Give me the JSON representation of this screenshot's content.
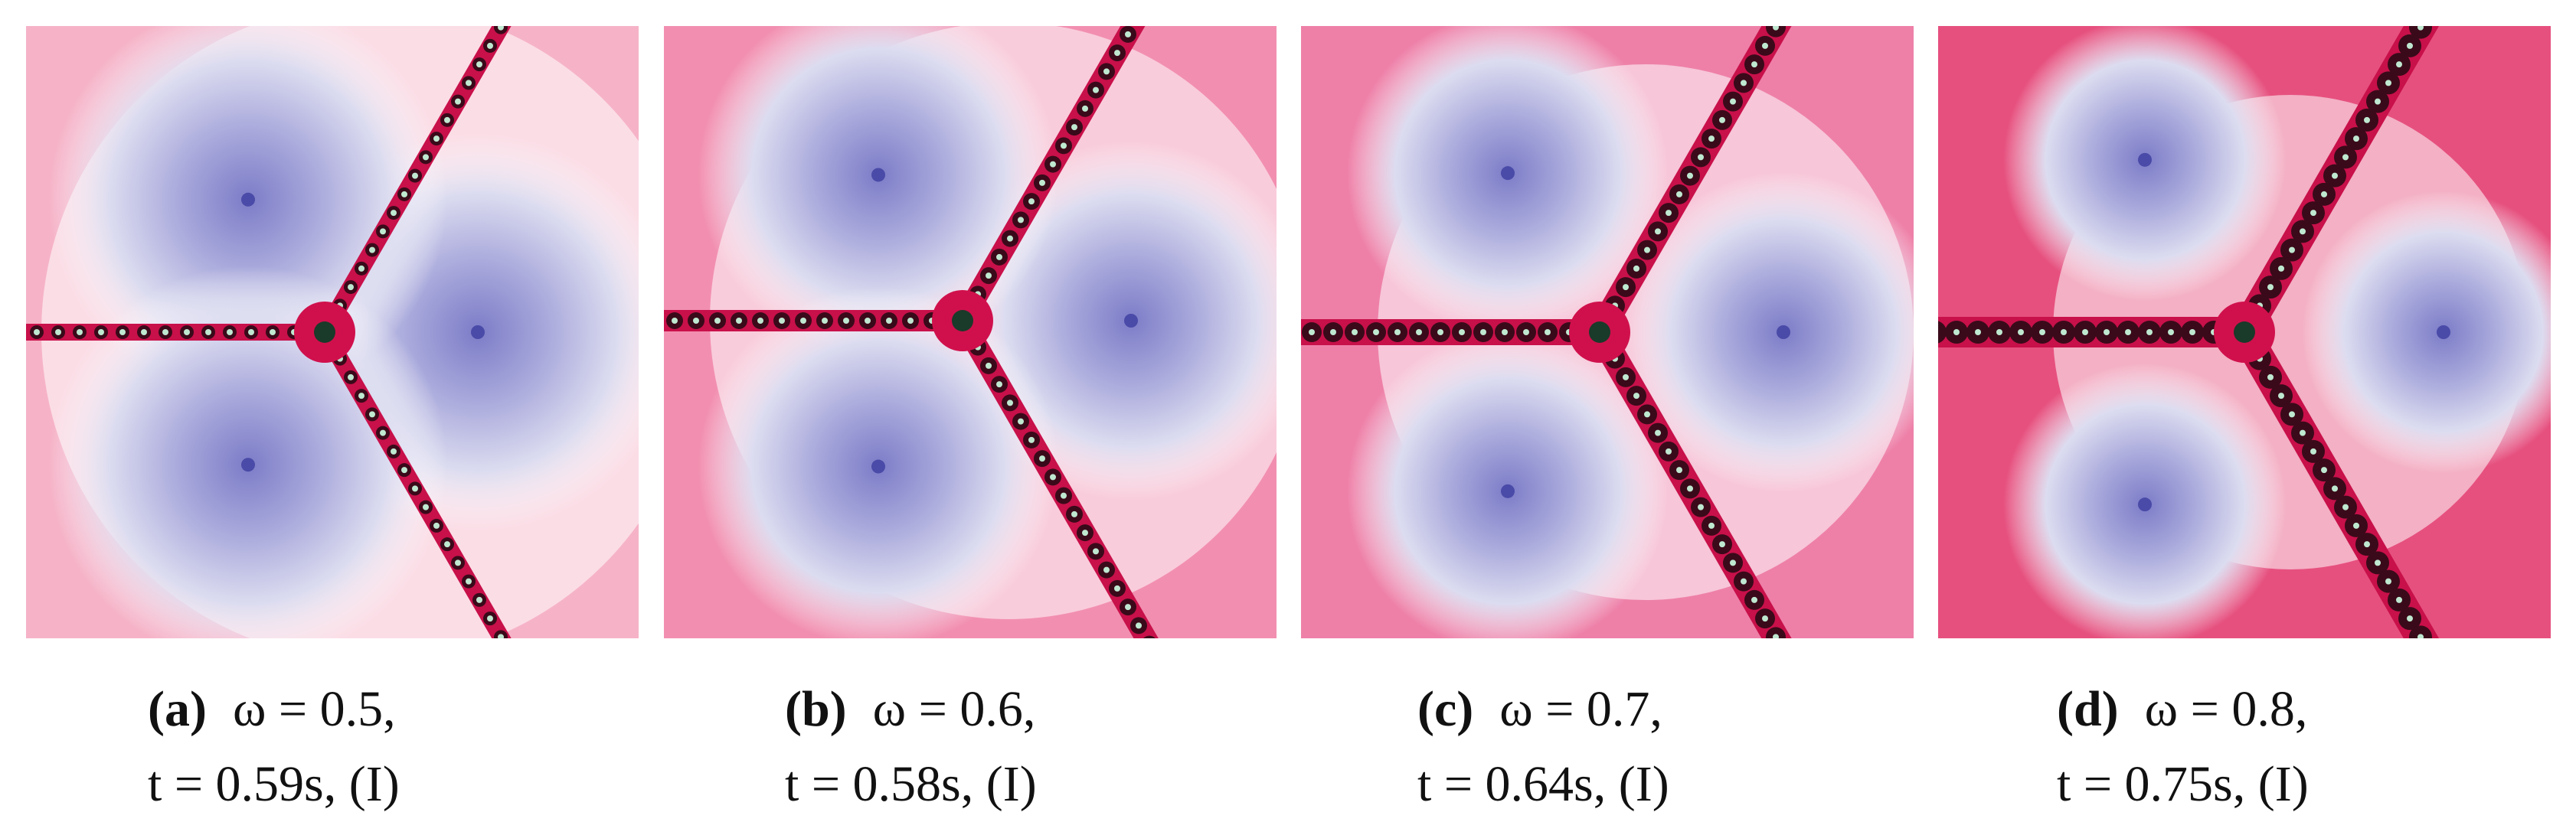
{
  "panels": [
    {
      "label": "(a)",
      "line1": "ω = 0.5,",
      "line2": "t = 0.59s, (I)"
    },
    {
      "label": "(b)",
      "line1": "ω = 0.6,",
      "line2": "t = 0.58s, (I)"
    },
    {
      "label": "(c)",
      "line1": "ω = 0.7,",
      "line2": "t = 0.64s, (I)"
    },
    {
      "label": "(d)",
      "line1": "ω = 0.8,",
      "line2": "t = 0.75s, (I)"
    }
  ]
}
